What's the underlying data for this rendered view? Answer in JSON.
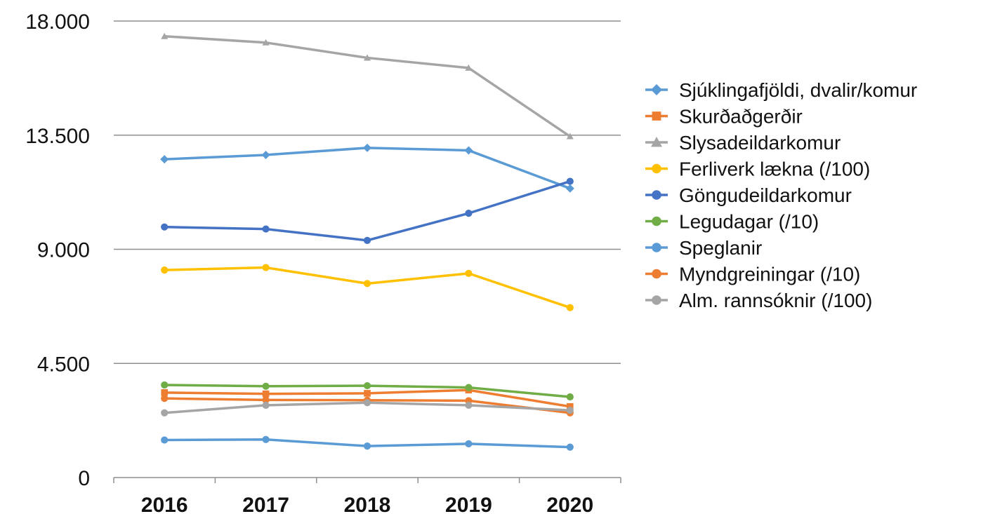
{
  "chart_data": {
    "type": "line",
    "title": "",
    "xlabel": "",
    "ylabel": "",
    "categories": [
      "2016",
      "2017",
      "2018",
      "2019",
      "2020"
    ],
    "ylim": [
      0,
      18000
    ],
    "yticks": [
      0,
      4500,
      9000,
      13500,
      18000
    ],
    "ytick_labels": [
      "0",
      "4.500",
      "9.000",
      "13.500",
      "18.000"
    ],
    "grid": "horizontal",
    "legend_position": "right",
    "series": [
      {
        "name": "Sjúklingafjöldi, dvalir/komur",
        "color": "#5b9bd5",
        "marker": "diamond",
        "values": [
          12550,
          12720,
          13000,
          12900,
          11400
        ]
      },
      {
        "name": "Skurðaðgerðir",
        "color": "#ed7d31",
        "marker": "square",
        "values": [
          3350,
          3300,
          3320,
          3450,
          2800
        ]
      },
      {
        "name": "Slysadeildarkomur",
        "color": "#a5a5a5",
        "marker": "triangle",
        "values": [
          17400,
          17150,
          16550,
          16150,
          13450
        ]
      },
      {
        "name": "Ferliverk lækna (/100)",
        "color": "#ffc000",
        "marker": "circle",
        "values": [
          8180,
          8280,
          7650,
          8050,
          6700
        ]
      },
      {
        "name": "Göngudeildarkomur",
        "color": "#4472c4",
        "marker": "circle",
        "values": [
          9880,
          9800,
          9350,
          10420,
          11680
        ]
      },
      {
        "name": "Legudagar (/10)",
        "color": "#70ad47",
        "marker": "circle",
        "values": [
          3650,
          3600,
          3620,
          3550,
          3180
        ]
      },
      {
        "name": "Speglanir",
        "color": "#5b9bd5",
        "marker": "circle",
        "values": [
          1480,
          1500,
          1240,
          1330,
          1200
        ]
      },
      {
        "name": "Myndgreiningar (/10)",
        "color": "#ed7d31",
        "marker": "circle",
        "values": [
          3120,
          3060,
          3050,
          3030,
          2550
        ]
      },
      {
        "name": "Alm. rannsóknir (/100)",
        "color": "#a5a5a5",
        "marker": "circle",
        "values": [
          2550,
          2850,
          2950,
          2850,
          2650
        ]
      }
    ]
  }
}
